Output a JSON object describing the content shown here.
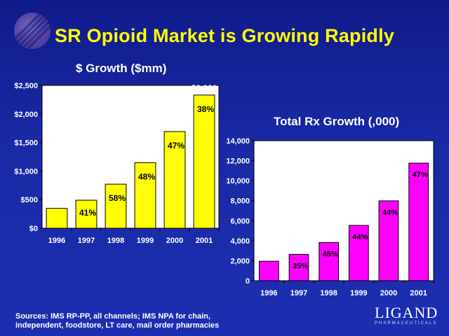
{
  "title": "SR Opioid Market is Growing Rapidly",
  "colors": {
    "background": "#1a2aa6",
    "title": "#ffff00",
    "bar_left": "#ffff00",
    "bar_right": "#ff00ff",
    "plot_bg": "#ffffff"
  },
  "footer": {
    "sources_line1": "Sources: IMS RP-PP, all channels; IMS NPA for chain,",
    "sources_line2": "independent, foodstore, LT care, mail order pharmacies",
    "brand": "LIGAND",
    "brand_sub": "PHARMACEUTICALS"
  },
  "chart_data": [
    {
      "type": "bar",
      "title": "$ Growth ($mm)",
      "categories": [
        "1996",
        "1997",
        "1998",
        "1999",
        "2000",
        "2001"
      ],
      "values": [
        348,
        490,
        771,
        1148,
        1692,
        2331
      ],
      "value_labels": [
        "$348",
        "$490",
        "$771",
        "$1,148",
        "$1,692",
        "$2,331"
      ],
      "growth_labels": [
        "",
        "41%",
        "58%",
        "48%",
        "47%",
        "38%"
      ],
      "ylim": [
        0,
        2500
      ],
      "yticks": [
        0,
        500,
        1000,
        1500,
        2000,
        2500
      ],
      "ytick_labels": [
        "$0",
        "$500",
        "$1,000",
        "$1,500",
        "$2,000",
        "$2,500"
      ],
      "bar_color": "#ffff00",
      "grid": false
    },
    {
      "type": "bar",
      "title": "Total Rx Growth (,000)",
      "categories": [
        "1996",
        "1997",
        "1998",
        "1999",
        "2000",
        "2001"
      ],
      "values": [
        1947,
        2636,
        3822,
        5532,
        7987,
        11759
      ],
      "value_labels": [
        "1,947",
        "2,636",
        "3,822",
        "5,532",
        "7,987",
        "11,759"
      ],
      "growth_labels": [
        "",
        "35%",
        "45%",
        "44%",
        "44%",
        "47%"
      ],
      "ylim": [
        0,
        14000
      ],
      "yticks": [
        0,
        2000,
        4000,
        6000,
        8000,
        10000,
        12000,
        14000
      ],
      "ytick_labels": [
        "0",
        "2,000",
        "4,000",
        "6,000",
        "8,000",
        "10,000",
        "12,000",
        "14,000"
      ],
      "bar_color": "#ff00ff",
      "grid": false
    }
  ]
}
